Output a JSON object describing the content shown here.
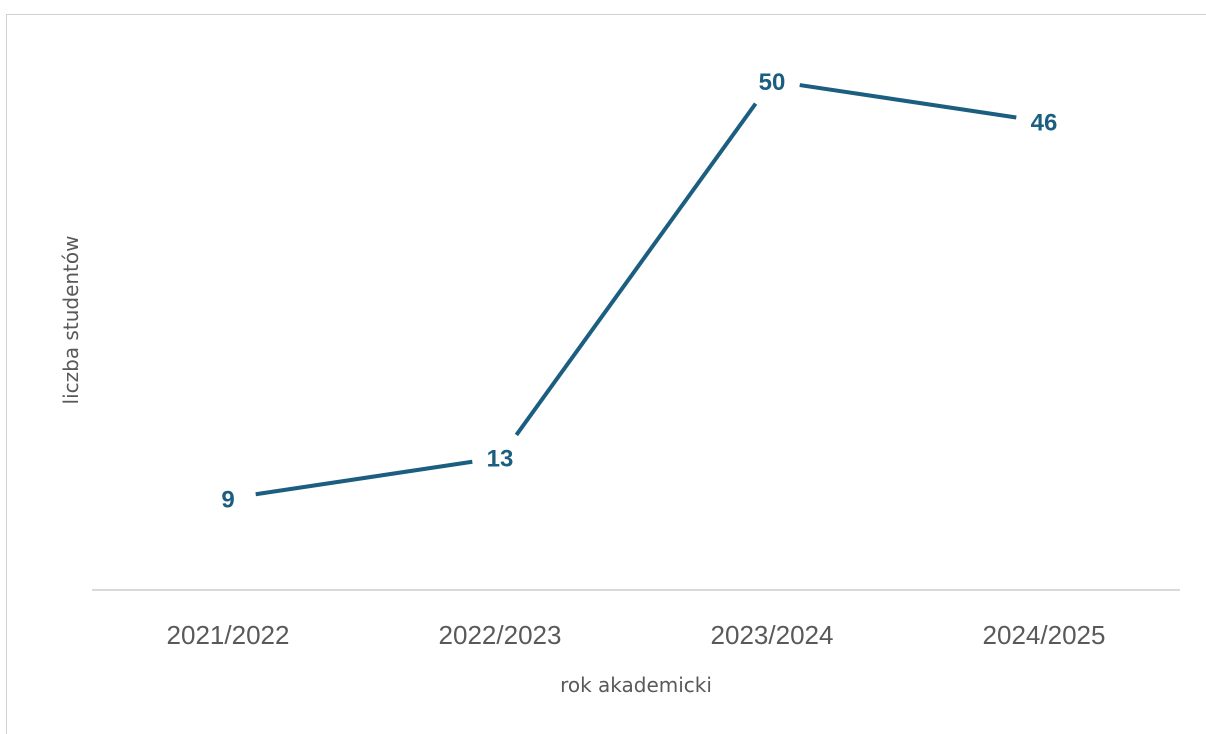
{
  "chart_data": {
    "type": "line",
    "title": "",
    "categories": [
      "2021/2022",
      "2022/2023",
      "2023/2024",
      "2024/2025"
    ],
    "series": [
      {
        "values": [
          9,
          13,
          50,
          46
        ]
      }
    ],
    "xlabel": "rok akademicki",
    "ylabel": "liczba studentów",
    "ylim": [
      0,
      55
    ],
    "grid": false,
    "legend": "none",
    "data_labels": true,
    "colors": {
      "line": "#1b5e80",
      "axis": "#d9d9d9",
      "text": "#595959"
    }
  }
}
